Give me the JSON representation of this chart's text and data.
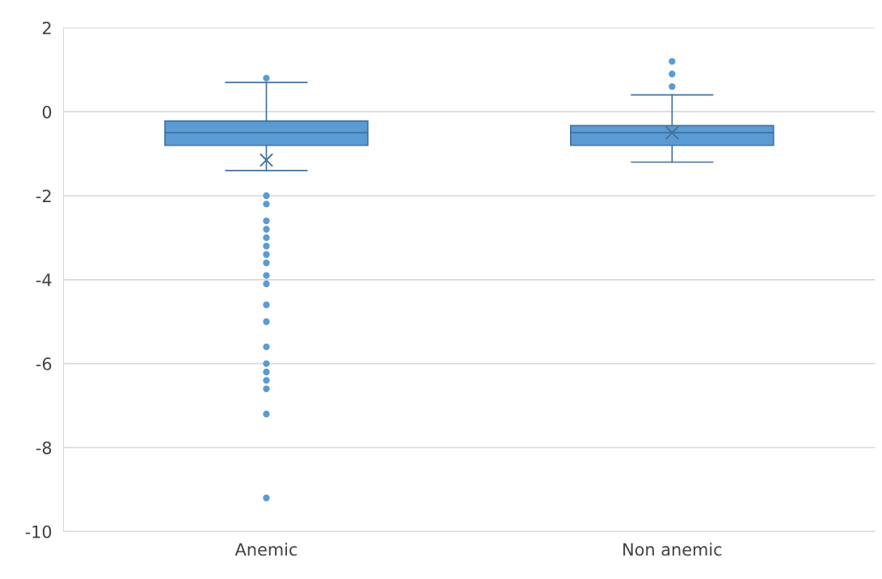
{
  "chart_data": {
    "type": "box",
    "categories": [
      "Anemic",
      "Non anemic"
    ],
    "color": "#5b9bd5",
    "boxes": [
      {
        "low": -1.4,
        "q1": -0.8,
        "median": -0.5,
        "q3": -0.22,
        "high": 0.7,
        "mean": -1.15,
        "outliers": [
          0.8,
          -2.0,
          -2.2,
          -2.6,
          -2.8,
          -3.0,
          -3.2,
          -3.4,
          -3.6,
          -3.9,
          -4.1,
          -4.6,
          -5.0,
          -5.6,
          -6.0,
          -6.2,
          -6.4,
          -6.6,
          -7.2,
          -9.2
        ]
      },
      {
        "low": -1.2,
        "q1": -0.8,
        "median": -0.5,
        "q3": -0.33,
        "high": 0.4,
        "mean": -0.5,
        "outliers": [
          1.2,
          0.9,
          0.6
        ]
      }
    ],
    "ylim": [
      -10,
      2
    ],
    "yticks": [
      -10,
      -8,
      -6,
      -4,
      -2,
      0,
      2
    ],
    "grid": "y",
    "legend": false
  }
}
